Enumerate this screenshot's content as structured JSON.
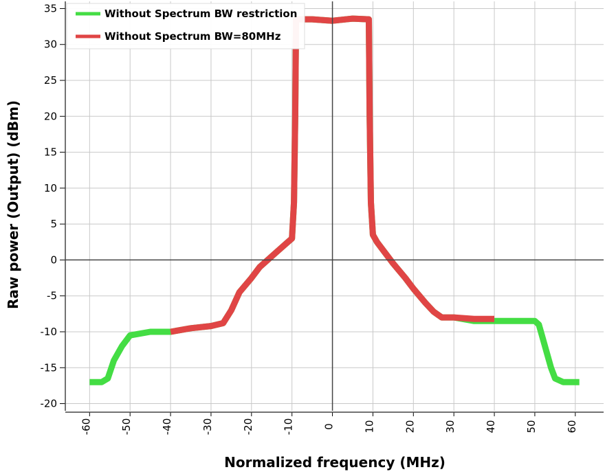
{
  "chart_data": {
    "type": "line",
    "xlabel": "Normalized frequency (MHz)",
    "ylabel": "Raw power (Output) (dBm)",
    "xlim": [
      -66,
      67
    ],
    "ylim": [
      -21,
      36
    ],
    "x_ticks": [
      -60,
      -50,
      -40,
      -30,
      -20,
      -10,
      0,
      10,
      20,
      30,
      40,
      50,
      60
    ],
    "y_ticks": [
      -20,
      -15,
      -10,
      -5,
      0,
      5,
      10,
      15,
      20,
      25,
      30,
      35
    ],
    "x_tick_labels": [
      "-60",
      "-50",
      "-40",
      "-30",
      "-20",
      "-10",
      "0",
      "10",
      "20",
      "30",
      "40",
      "50",
      "60"
    ],
    "y_tick_labels": [
      "-20",
      "-15",
      "-10",
      "-5",
      "0",
      "5",
      "10",
      "15",
      "20",
      "25",
      "30",
      "35"
    ],
    "grid": true,
    "legend_position": "top-left",
    "series": [
      {
        "name": "Without Spectrum BW restriction",
        "color": "#44dd44",
        "x": [
          -60,
          -57,
          -55.5,
          -54,
          -52,
          -50,
          -45,
          -40,
          -35,
          -30,
          -27,
          -25,
          -23,
          -20,
          -18,
          -15,
          -13,
          -11,
          -10,
          -9.5,
          -9.2,
          -9,
          -5,
          0,
          5,
          9,
          9.2,
          9.5,
          10,
          11,
          13,
          15,
          18,
          20,
          23,
          25,
          27,
          30,
          35,
          40,
          45,
          50,
          51,
          52,
          53,
          54,
          55,
          57,
          60,
          61
        ],
        "y": [
          -17,
          -17,
          -16.5,
          -14,
          -12,
          -10.5,
          -10,
          -10,
          -9.5,
          -9.2,
          -8.8,
          -7,
          -4.5,
          -2.5,
          -1,
          0.5,
          1.5,
          2.5,
          3,
          8,
          20,
          33.5,
          33.5,
          33.3,
          33.6,
          33.5,
          20,
          8,
          3.5,
          2.5,
          1,
          -0.5,
          -2.5,
          -4,
          -6,
          -7.2,
          -8,
          -8,
          -8.5,
          -8.5,
          -8.5,
          -8.5,
          -9,
          -11,
          -13,
          -15,
          -16.5,
          -17,
          -17,
          -17
        ]
      },
      {
        "name": "Without Spectrum BW=80MHz",
        "color": "#e04545",
        "x": [
          -40,
          -35,
          -30,
          -27,
          -25,
          -23,
          -20,
          -18,
          -15,
          -13,
          -11,
          -10,
          -9.5,
          -9.2,
          -9,
          -5,
          0,
          5,
          9,
          9.2,
          9.5,
          10,
          11,
          13,
          15,
          18,
          20,
          23,
          25,
          27,
          30,
          35,
          40
        ],
        "y": [
          -10,
          -9.5,
          -9.2,
          -8.8,
          -7,
          -4.5,
          -2.5,
          -1,
          0.5,
          1.5,
          2.5,
          3,
          8,
          20,
          33.5,
          33.5,
          33.3,
          33.6,
          33.5,
          20,
          8,
          3.5,
          2.5,
          1,
          -0.5,
          -2.5,
          -4,
          -6,
          -7.2,
          -8,
          -8,
          -8.2,
          -8.2
        ]
      }
    ]
  }
}
